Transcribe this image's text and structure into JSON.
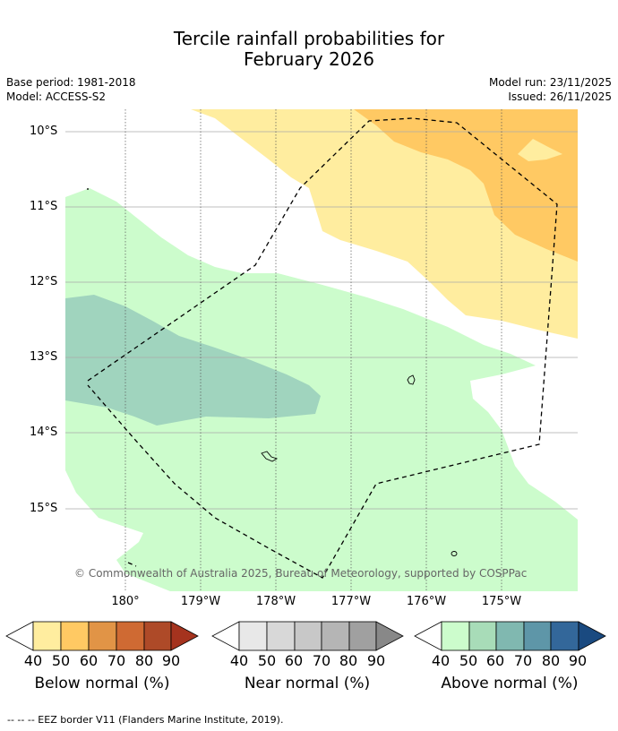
{
  "title": {
    "line1": "Tercile rainfall probabilities for",
    "line2": "February 2026"
  },
  "meta": {
    "base_period": "Base period: 1981-2018",
    "model": "Model: ACCESS-S2",
    "model_run": "Model run: 23/11/2025",
    "issued": "Issued: 26/11/2025"
  },
  "map": {
    "lat_labels": [
      "10°S",
      "11°S",
      "12°S",
      "13°S",
      "14°S",
      "15°S"
    ],
    "lon_labels": [
      "180°",
      "179°W",
      "178°W",
      "177°W",
      "176°W",
      "175°W"
    ],
    "copyright": "© Commonwealth of Australia 2025, Bureau of Meteorology, supported by COSPPac"
  },
  "colorbars": [
    {
      "label": "Below normal (%)",
      "ticks": [
        "40",
        "50",
        "60",
        "70",
        "80",
        "90"
      ],
      "colors": [
        "#ffed9f",
        "#ffc963",
        "#e19446",
        "#cf6a33",
        "#ae4a28",
        "#a5331e"
      ]
    },
    {
      "label": "Near normal (%)",
      "ticks": [
        "40",
        "50",
        "60",
        "70",
        "80",
        "90"
      ],
      "colors": [
        "#e8e8e8",
        "#d8d8d8",
        "#c8c8c8",
        "#b5b5b5",
        "#a0a0a0",
        "#888888"
      ]
    },
    {
      "label": "Above normal (%)",
      "ticks": [
        "40",
        "50",
        "60",
        "70",
        "80",
        "90"
      ],
      "colors": [
        "#ccfccc",
        "#a8dcb8",
        "#80b8b0",
        "#5e96a8",
        "#33679a",
        "#1a4a80"
      ]
    }
  ],
  "footnote": "--  --  -- EEZ border V11 (Flanders Marine Institute, 2019)."
}
